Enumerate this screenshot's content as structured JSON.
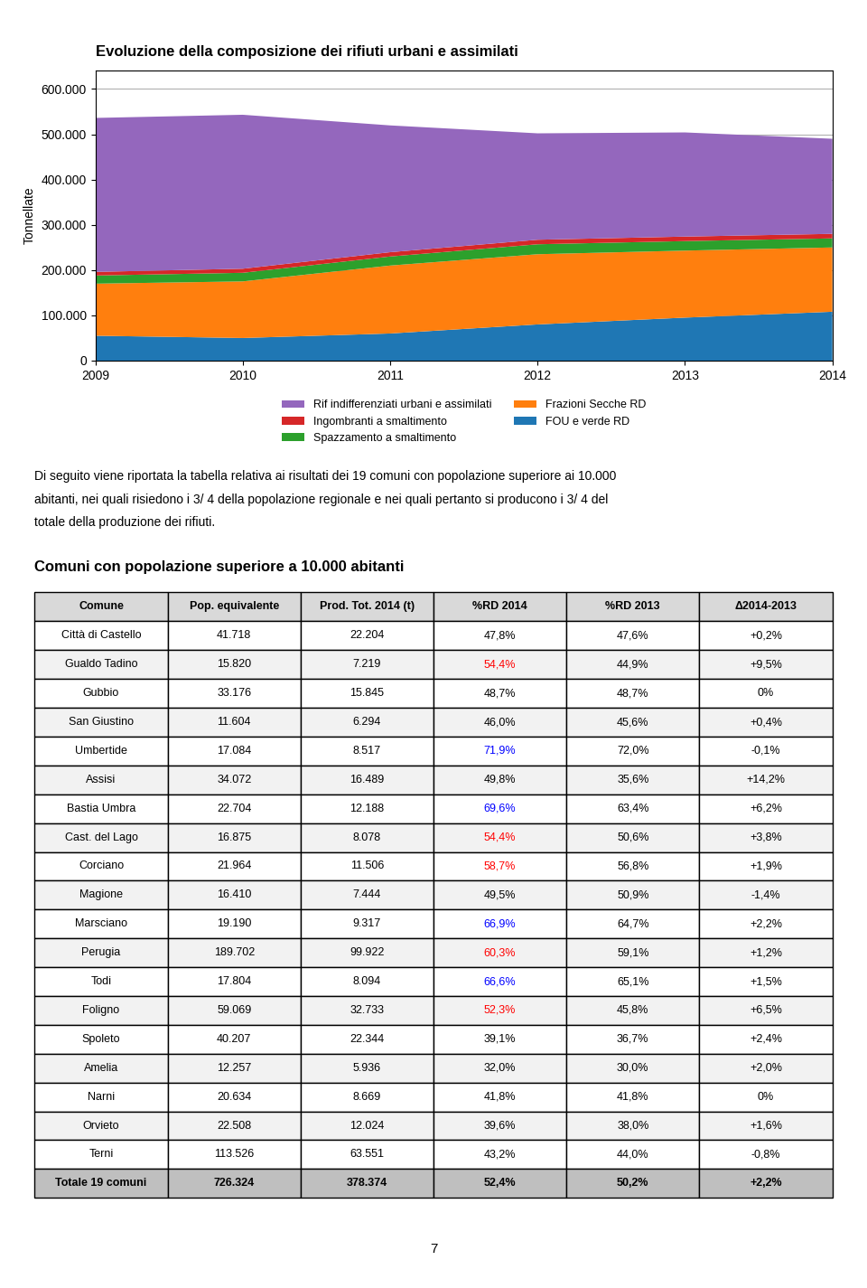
{
  "chart_data": [
    {
      "type": "area",
      "title": "Evoluzione della composizione dei rifiuti urbani e assimilati",
      "x": [
        2009,
        2010,
        2011,
        2012,
        2013,
        2014
      ],
      "xlim": [
        2009,
        2014
      ],
      "xticks": [
        2009,
        2010,
        2011,
        2012,
        2013,
        2014
      ],
      "y_label": "Tonnellate",
      "ylim": [
        0,
        640000
      ],
      "yticks": [
        0,
        {
          "value": 100000,
          "label": "100.000"
        },
        {
          "value": 200000,
          "label": "200.000"
        },
        {
          "value": 300000,
          "label": "300.000"
        },
        {
          "value": 400000,
          "label": "400.000"
        },
        {
          "value": 500000,
          "label": "500.000"
        },
        {
          "value": 600000,
          "label": "600.000"
        }
      ],
      "stacked": true,
      "grid": true,
      "legend": "upper center",
      "series": [
        {
          "name": "FOU e verde RD",
          "values": [
            55000,
            50000,
            60000,
            80000,
            95000,
            108000
          ]
        },
        {
          "name": "Frazioni Secche RD",
          "values": [
            115000,
            125000,
            150000,
            155000,
            148000,
            142000
          ]
        },
        {
          "name": "Spazzamento a smaltimento",
          "values": [
            18000,
            19000,
            20000,
            22000,
            21000,
            20000
          ]
        },
        {
          "name": "Ingombranti a smaltimento",
          "values": [
            8000,
            9000,
            9500,
            10000,
            10000,
            10000
          ]
        },
        {
          "name": "Rif indifferenziati urbani e assimilati",
          "values": [
            340000,
            340000,
            280000,
            235000,
            230000,
            210000
          ]
        }
      ]
    },
    {
      "type": "table",
      "title": "Comuni con popolazione superiore a 10.000 abitanti",
      "columns": [
        "Comune",
        "Pop. equivalente",
        "Prod. Tot. 2014 (t)",
        "%RD 2014",
        "%RD 2013",
        "Δ2014-2013"
      ],
      "rows": [
        [
          "Città di Castello",
          "41.718",
          "22.204",
          "47,8%",
          "47,6%",
          "+0,2%"
        ],
        [
          "Gualdo Tadino",
          "15.820",
          "7.219",
          "54,4%",
          "44,9%",
          "+9,5%"
        ],
        [
          "Gubbio",
          "33.176",
          "15.845",
          "48,7%",
          "48,7%",
          "0%"
        ],
        [
          "San Giustino",
          "11.604",
          "6.294",
          "46,0%",
          "45,6%",
          "+0,4%"
        ],
        [
          "Umbertide",
          "17.084",
          "8.517",
          "71,9%",
          "72,0%",
          "-0,1%"
        ],
        [
          "Assisi",
          "34.072",
          "16.489",
          "49,8%",
          "35,6%",
          "+14,2%"
        ],
        [
          "Bastia Umbra",
          "22.704",
          "12.188",
          "69,6%",
          "63,4%",
          "+6,2%"
        ],
        [
          "Cast. del Lago",
          "16.875",
          "8.078",
          "54,4%",
          "50,6%",
          "+3,8%"
        ],
        [
          "Corciano",
          "21.964",
          "11.506",
          "58,7%",
          "56,8%",
          "+1,9%"
        ],
        [
          "Magione",
          "16.410",
          "7.444",
          "49,5%",
          "50,9%",
          "-1,4%"
        ],
        [
          "Marsciano",
          "19.190",
          "9.317",
          "66,9%",
          "64,7%",
          "+2,2%"
        ],
        [
          "Perugia",
          "189.702",
          "99.922",
          "60,3%",
          "59,1%",
          "+1,2%"
        ],
        [
          "Todi",
          "17.804",
          "8.094",
          "66,6%",
          "65,1%",
          "+1,5%"
        ],
        [
          "Foligno",
          "59.069",
          "32.733",
          "52,3%",
          "45,8%",
          "+6,5%"
        ],
        [
          "Spoleto",
          "40.207",
          "22.344",
          "39,1%",
          "36,7%",
          "+2,4%"
        ],
        [
          "Amelia",
          "12.257",
          "5.936",
          "32,0%",
          "30,0%",
          "+2,0%"
        ],
        [
          "Narni",
          "20.634",
          "8.669",
          "41,8%",
          "41,8%",
          "0%"
        ],
        [
          "Orvieto",
          "22.508",
          "12.024",
          "39,6%",
          "38,0%",
          "+1,6%"
        ],
        [
          "Terni",
          "113.526",
          "63.551",
          "43,2%",
          "44,0%",
          "-0,8%"
        ]
      ],
      "colors": [
        "black",
        "red",
        "black",
        "black",
        "blue",
        "black",
        "blue",
        "red",
        "red",
        "black",
        "blue",
        "red",
        "blue",
        "red",
        "black",
        "black",
        "black",
        "black",
        "black"
      ],
      "total": [
        "Totale 19 comuni",
        "726.324",
        "378.374",
        "52,4%",
        "50,2%",
        "+2,2%"
      ]
    }
  ],
  "annotations": [
    "Di seguito viene riportata la tabella relativa ai risultati dei 19 comuni con popolazione superiore ai 10.000",
    "abitanti, nei quali risiedono i 3/ 4 della popolazione regionale e nei quali pertanto si producono i 3/ 4 del",
    "totale della produzione dei rifiuti."
  ],
  "page_number": "7"
}
